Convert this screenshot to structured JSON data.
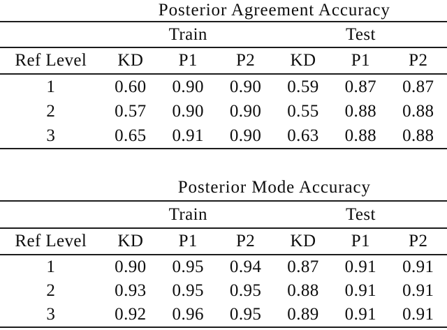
{
  "figure": {
    "description_colors": {
      "text": "#0d0d0d",
      "rule": "#1c1c1c",
      "background": "#ffffff"
    }
  },
  "tables": [
    {
      "title": "Posterior Agreement Accuracy",
      "groups": [
        "Train",
        "Test"
      ],
      "col_headers": [
        "Ref Level",
        "KD",
        "P1",
        "P2",
        "KD",
        "P1",
        "P2"
      ],
      "rows": [
        {
          "label": "1",
          "cells": [
            "0.60",
            "0.90",
            "0.90",
            "0.59",
            "0.87",
            "0.87"
          ]
        },
        {
          "label": "2",
          "cells": [
            "0.57",
            "0.90",
            "0.90",
            "0.55",
            "0.88",
            "0.88"
          ]
        },
        {
          "label": "3",
          "cells": [
            "0.65",
            "0.91",
            "0.90",
            "0.63",
            "0.88",
            "0.88"
          ]
        }
      ]
    },
    {
      "title": "Posterior Mode Accuracy",
      "groups": [
        "Train",
        "Test"
      ],
      "col_headers": [
        "Ref Level",
        "KD",
        "P1",
        "P2",
        "KD",
        "P1",
        "P2"
      ],
      "rows": [
        {
          "label": "1",
          "cells": [
            "0.90",
            "0.95",
            "0.94",
            "0.87",
            "0.91",
            "0.91"
          ]
        },
        {
          "label": "2",
          "cells": [
            "0.93",
            "0.95",
            "0.95",
            "0.88",
            "0.91",
            "0.91"
          ]
        },
        {
          "label": "3",
          "cells": [
            "0.92",
            "0.96",
            "0.95",
            "0.89",
            "0.91",
            "0.91"
          ]
        }
      ]
    }
  ]
}
